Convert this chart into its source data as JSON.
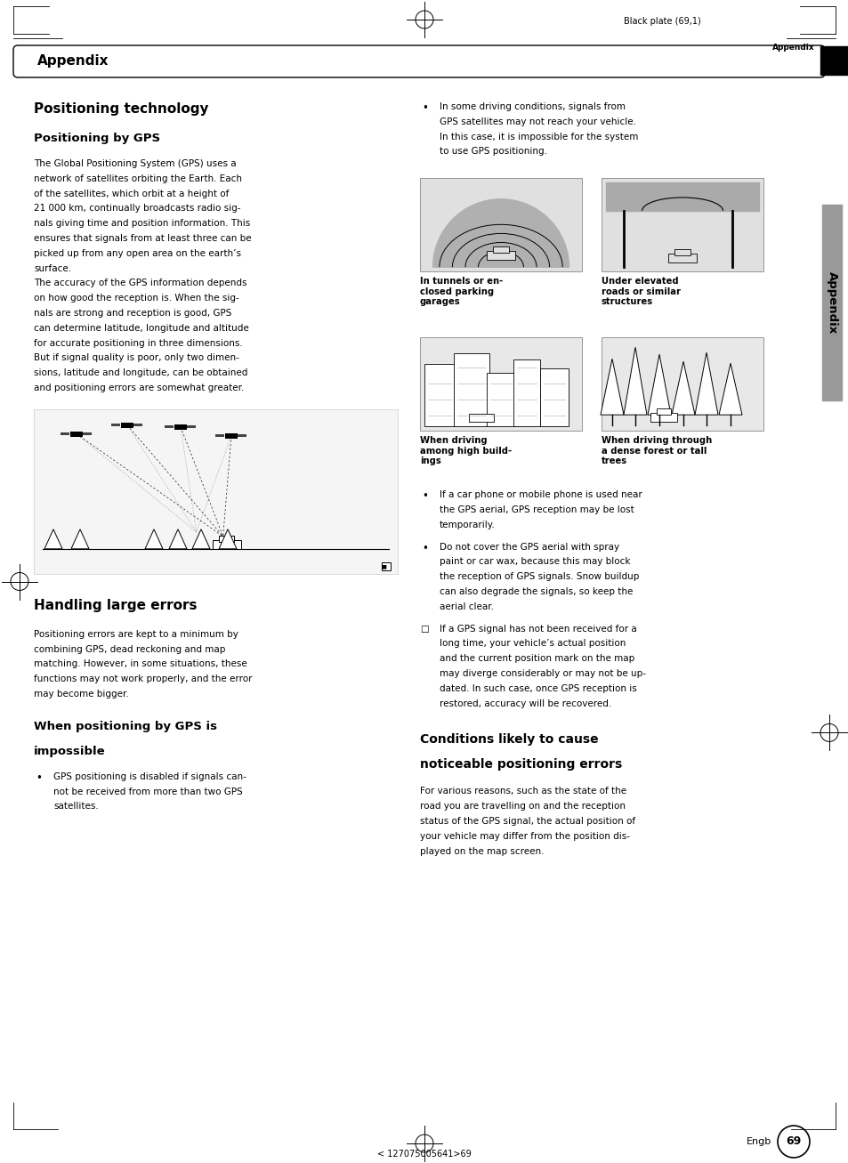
{
  "page_width": 9.54,
  "page_height": 13.07,
  "dpi": 100,
  "background_color": "#ffffff",
  "header_text": "Black plate (69,1)",
  "appendix_label_top": "Appendix",
  "appendix_rounded_rect_text": "Appendix",
  "section_title_1": "Positioning technology",
  "section_title_2": "Positioning by GPS",
  "body_text_col1": [
    "The Global Positioning System (GPS) uses a",
    "network of satellites orbiting the Earth. Each",
    "of the satellites, which orbit at a height of",
    "21 000 km, continually broadcasts radio sig-",
    "nals giving time and position information. This",
    "ensures that signals from at least three can be",
    "picked up from any open area on the earth’s",
    "surface.",
    "The accuracy of the GPS information depends",
    "on how good the reception is. When the sig-",
    "nals are strong and reception is good, GPS",
    "can determine latitude, longitude and altitude",
    "for accurate positioning in three dimensions.",
    "But if signal quality is poor, only two dimen-",
    "sions, latitude and longitude, can be obtained",
    "and positioning errors are somewhat greater."
  ],
  "bullet_col2_1": [
    "In some driving conditions, signals from",
    "GPS satellites may not reach your vehicle.",
    "In this case, it is impossible for the system",
    "to use GPS positioning."
  ],
  "img_caption_1a": "In tunnels or en-\nclosed parking\ngarages",
  "img_caption_1b": "Under elevated\nroads or similar\nstructures",
  "img_caption_2a": "When driving\namong high build-\nings",
  "img_caption_2b": "When driving through\na dense forest or tall\ntrees",
  "bullet_col2_2": [
    "If a car phone or mobile phone is used near",
    "the GPS aerial, GPS reception may be lost",
    "temporarily."
  ],
  "bullet_col2_3": [
    "Do not cover the GPS aerial with spray",
    "paint or car wax, because this may block",
    "the reception of GPS signals. Snow buildup",
    "can also degrade the signals, so keep the",
    "aerial clear."
  ],
  "checkbox_text": [
    "If a GPS signal has not been received for a",
    "long time, your vehicle’s actual position",
    "and the current position mark on the map",
    "may diverge considerably or may not be up-",
    "dated. In such case, once GPS reception is",
    "restored, accuracy will be recovered."
  ],
  "section_title_3": "Handling large errors",
  "handling_text": [
    "Positioning errors are kept to a minimum by",
    "combining GPS, dead reckoning and map",
    "matching. However, in some situations, these",
    "functions may not work properly, and the error",
    "may become bigger."
  ],
  "section_title_4a": "When positioning by GPS is",
  "section_title_4b": "impossible",
  "impossible_bullet": [
    "GPS positioning is disabled if signals can-",
    "not be received from more than two GPS",
    "satellites."
  ],
  "section_title_5a": "Conditions likely to cause",
  "section_title_5b": "noticeable positioning errors",
  "conditions_text": [
    "For various reasons, such as the state of the",
    "road you are travelling on and the reception",
    "status of the GPS signal, the actual position of",
    "your vehicle may differ from the position dis-",
    "played on the map screen."
  ],
  "footer_text": "Engb",
  "page_number": "69",
  "bottom_text": "< 127075005641>69",
  "appendix_side_text": "Appendix",
  "side_bar_color": "#999999"
}
